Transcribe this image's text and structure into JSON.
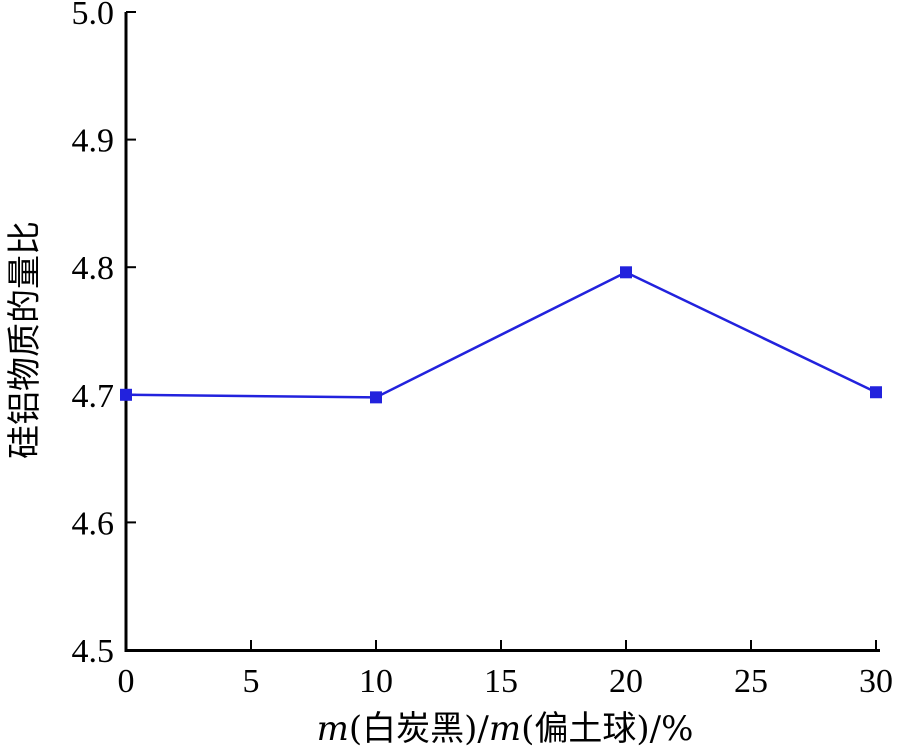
{
  "chart_data": {
    "type": "line",
    "x": [
      0,
      10,
      20,
      30
    ],
    "series": [
      {
        "values": [
          4.7,
          4.698,
          4.796,
          4.702
        ],
        "color": "#2222dd",
        "marker": "square"
      }
    ],
    "xlabel_parts": {
      "m1": "m",
      "mid1": "(白炭黑)/",
      "m2": "m",
      "mid2": "(偏土球)/%"
    },
    "ylabel": "硅铝物质的量比",
    "xlim": [
      0,
      30
    ],
    "ylim": [
      4.5,
      5.0
    ],
    "xticks": [
      0,
      5,
      10,
      15,
      20,
      25,
      30
    ],
    "yticks": [
      "4.5",
      "4.6",
      "4.7",
      "4.8",
      "4.9",
      "5.0"
    ],
    "grid": false
  }
}
